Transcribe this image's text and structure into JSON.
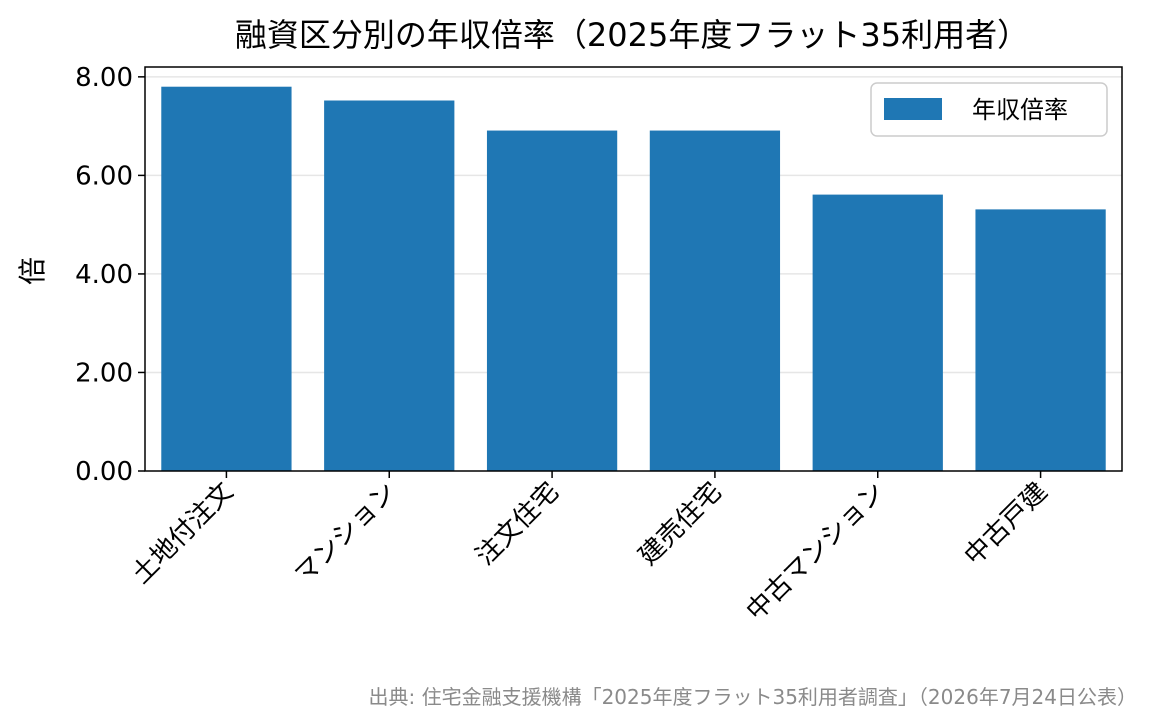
{
  "chart_data": {
    "type": "bar",
    "title": "融資区分別の年収倍率（2025年度フラット35利用者）",
    "xlabel": "",
    "ylabel": "倍",
    "categories": [
      "土地付注文",
      "マンション",
      "注文住宅",
      "建売住宅",
      "中古マンション",
      "中古戸建"
    ],
    "series": [
      {
        "name": "年収倍率",
        "values": [
          7.8,
          7.52,
          6.91,
          6.91,
          5.61,
          5.31
        ]
      }
    ],
    "ylim": [
      0,
      8.2
    ],
    "yticks": [
      "0.00",
      "2.00",
      "4.00",
      "6.00",
      "8.00"
    ],
    "grid": "y",
    "legend": "top-right",
    "colors": {
      "bar": "#1f77b4",
      "grid": "#e6e6e6"
    },
    "source": "出典: 住宅金融支援機構「2025年度フラット35利用者調査」（2026年7月24日公表）"
  }
}
